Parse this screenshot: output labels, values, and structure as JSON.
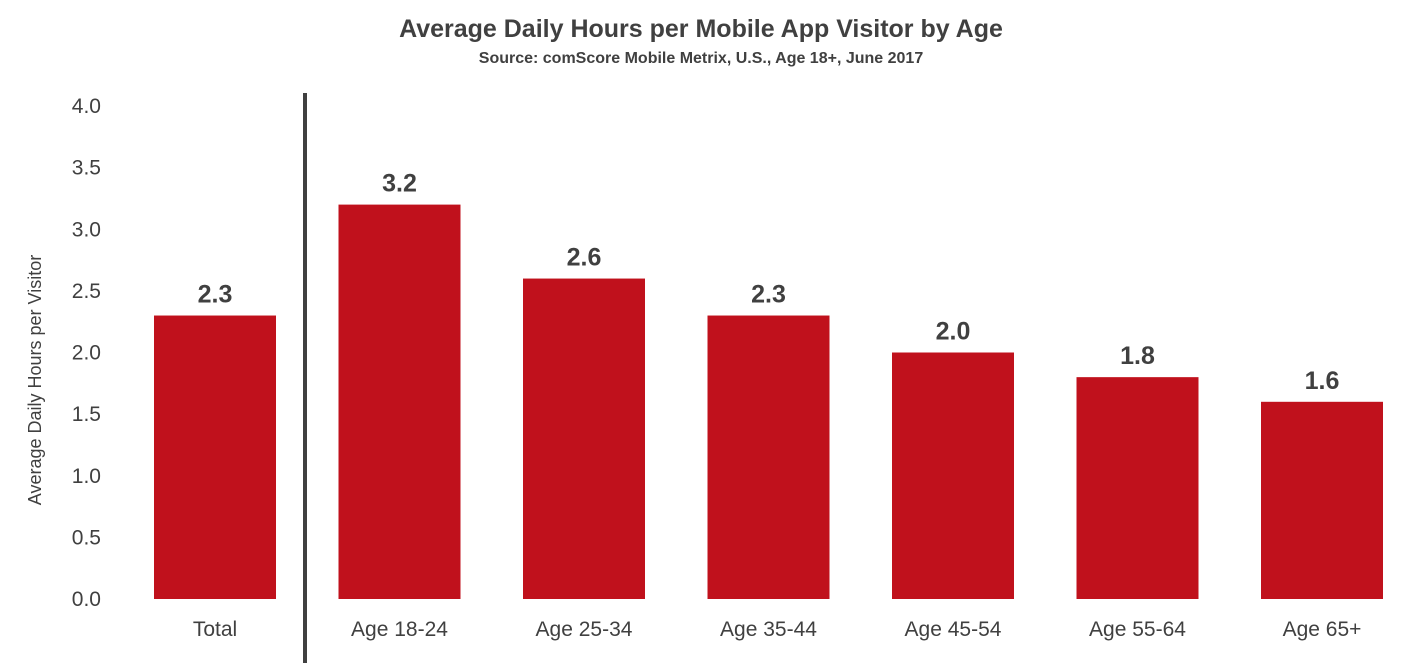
{
  "chart_data": {
    "type": "bar",
    "title": "Average Daily Hours per Mobile App Visitor by Age",
    "subtitle": "Source: comScore Mobile Metrix, U.S., Age 18+, June 2017",
    "xlabel": "",
    "ylabel": "Average Daily Hours per Visitor",
    "categories": [
      "Total",
      "Age 18-24",
      "Age 25-34",
      "Age 35-44",
      "Age 45-54",
      "Age 55-64",
      "Age 65+"
    ],
    "values": [
      2.3,
      3.2,
      2.6,
      2.3,
      2.0,
      1.8,
      1.6
    ],
    "data_labels": [
      "2.3",
      "3.2",
      "2.6",
      "2.3",
      "2.0",
      "1.8",
      "1.6"
    ],
    "yticks": [
      "0.0",
      "0.5",
      "1.0",
      "1.5",
      "2.0",
      "2.5",
      "3.0",
      "3.5",
      "4.0"
    ],
    "ylim": [
      0,
      4.0
    ],
    "grid": false,
    "legend": "none",
    "separator_after_category": "Total",
    "bar_color": "#c0111c",
    "text_color": "#404040",
    "separator_color": "#404040"
  }
}
